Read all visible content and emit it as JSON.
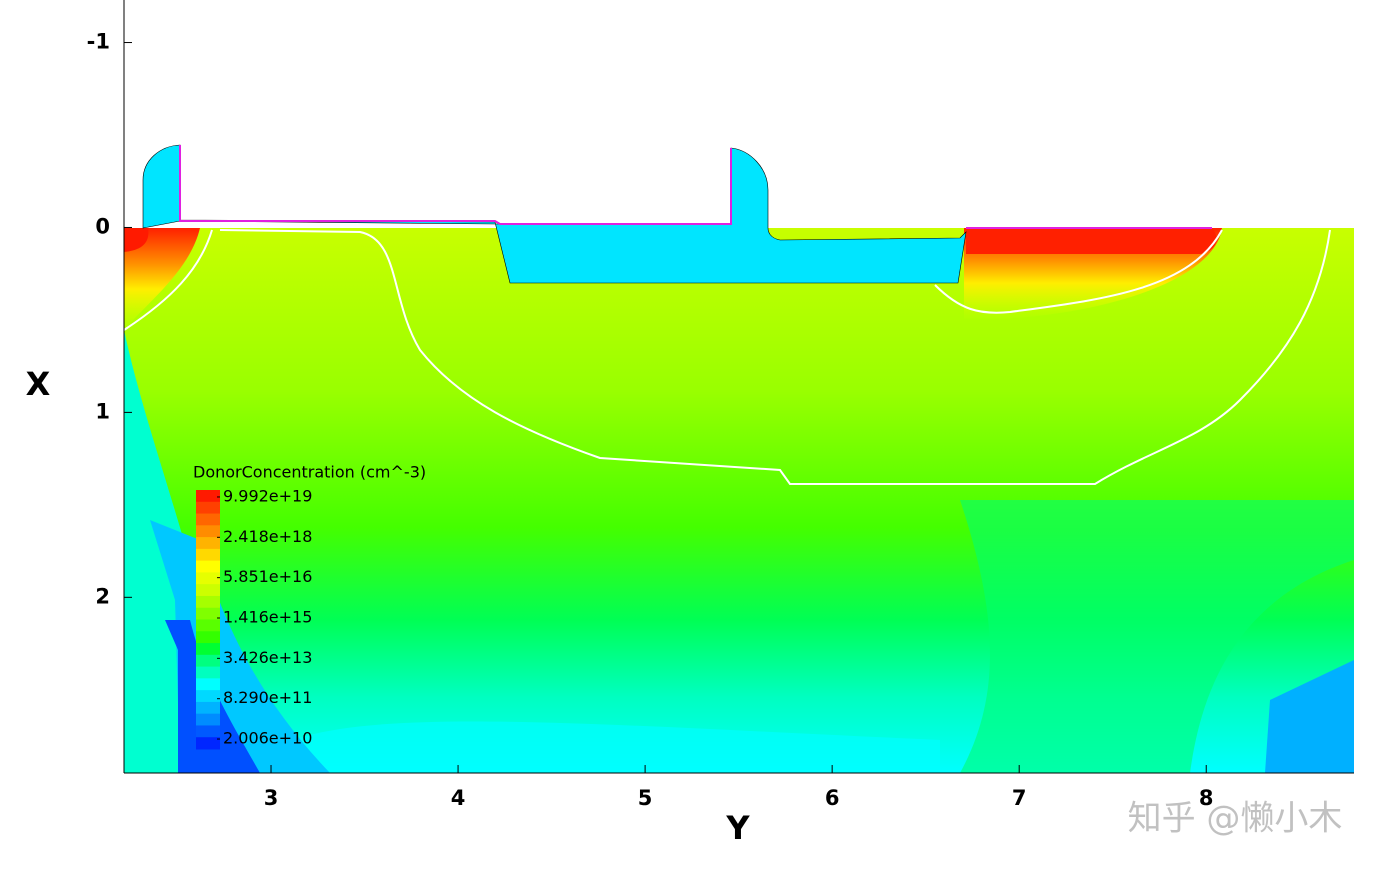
{
  "chart_data": {
    "type": "contour",
    "x_label": "Y",
    "y_label": "X",
    "xlim": [
      2.214,
      8.79
    ],
    "ylim": [
      -1.23,
      2.95
    ],
    "y_inverted": true,
    "xticks": [
      3,
      4,
      5,
      6,
      7,
      8
    ],
    "yticks": [
      -1,
      0,
      1,
      2
    ],
    "legend": {
      "title": "DonorConcentration (cm^-3)",
      "log_scale": true,
      "clim": [
        8000000000.0,
        1.9e+20
      ],
      "ticks": [
        {
          "value": 9.992e+19,
          "label": "9.992e+19"
        },
        {
          "value": 2.418e+18,
          "label": "2.418e+18"
        },
        {
          "value": 5.851e+16,
          "label": "5.851e+16"
        },
        {
          "value": 1416000000000000.0,
          "label": "1.416e+15"
        },
        {
          "value": 34260000000000.0,
          "label": "3.426e+13"
        },
        {
          "value": 829000000000.0,
          "label": "8.290e+11"
        },
        {
          "value": 20060000000.0,
          "label": "2.006e+10"
        }
      ],
      "colors": [
        "#ff1a00",
        "#ff4000",
        "#ff6600",
        "#ff8c00",
        "#ffb300",
        "#ffd900",
        "#ffff00",
        "#e6ff00",
        "#ccff00",
        "#a6ff00",
        "#80ff00",
        "#59ff00",
        "#33ff00",
        "#00ff33",
        "#00ff80",
        "#00ffbf",
        "#00ffff",
        "#00d9ff",
        "#00b3ff",
        "#008cff",
        "#0059ff",
        "#0026ff"
      ]
    },
    "watermark": "知乎 @懒小木"
  }
}
